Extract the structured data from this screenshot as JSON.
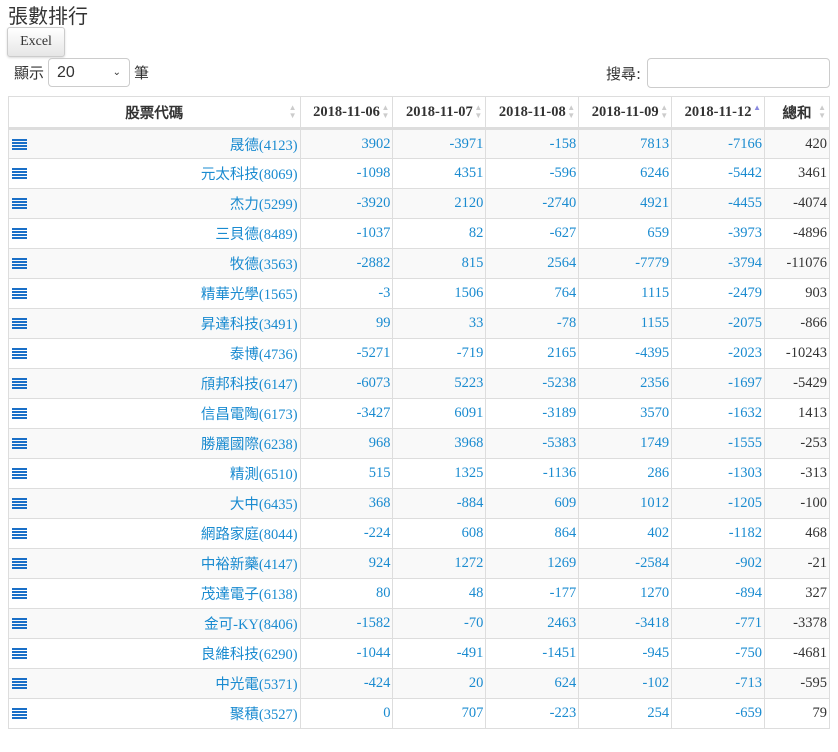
{
  "title": "張數排行",
  "excel_label": "Excel",
  "length": {
    "prefix": "顯示",
    "value": "20",
    "suffix": "筆"
  },
  "search": {
    "label": "搜尋:",
    "value": ""
  },
  "columns": [
    "股票代碼",
    "2018-11-06",
    "2018-11-07",
    "2018-11-08",
    "2018-11-09",
    "2018-11-12",
    "總和"
  ],
  "sorted_column": "2018-11-12",
  "rows": [
    [
      "晟德(4123)",
      "3902",
      "-3971",
      "-158",
      "7813",
      "-7166",
      "420"
    ],
    [
      "元太科技(8069)",
      "-1098",
      "4351",
      "-596",
      "6246",
      "-5442",
      "3461"
    ],
    [
      "杰力(5299)",
      "-3920",
      "2120",
      "-2740",
      "4921",
      "-4455",
      "-4074"
    ],
    [
      "三貝德(8489)",
      "-1037",
      "82",
      "-627",
      "659",
      "-3973",
      "-4896"
    ],
    [
      "牧德(3563)",
      "-2882",
      "815",
      "2564",
      "-7779",
      "-3794",
      "-11076"
    ],
    [
      "精華光學(1565)",
      "-3",
      "1506",
      "764",
      "1115",
      "-2479",
      "903"
    ],
    [
      "昇達科技(3491)",
      "99",
      "33",
      "-78",
      "1155",
      "-2075",
      "-866"
    ],
    [
      "泰博(4736)",
      "-5271",
      "-719",
      "2165",
      "-4395",
      "-2023",
      "-10243"
    ],
    [
      "頎邦科技(6147)",
      "-6073",
      "5223",
      "-5238",
      "2356",
      "-1697",
      "-5429"
    ],
    [
      "信昌電陶(6173)",
      "-3427",
      "6091",
      "-3189",
      "3570",
      "-1632",
      "1413"
    ],
    [
      "勝麗國際(6238)",
      "968",
      "3968",
      "-5383",
      "1749",
      "-1555",
      "-253"
    ],
    [
      "精測(6510)",
      "515",
      "1325",
      "-1136",
      "286",
      "-1303",
      "-313"
    ],
    [
      "大中(6435)",
      "368",
      "-884",
      "609",
      "1012",
      "-1205",
      "-100"
    ],
    [
      "網路家庭(8044)",
      "-224",
      "608",
      "864",
      "402",
      "-1182",
      "468"
    ],
    [
      "中裕新藥(4147)",
      "924",
      "1272",
      "1269",
      "-2584",
      "-902",
      "-21"
    ],
    [
      "茂達電子(6138)",
      "80",
      "48",
      "-177",
      "1270",
      "-894",
      "327"
    ],
    [
      "金可-KY(8406)",
      "-1582",
      "-70",
      "2463",
      "-3418",
      "-771",
      "-3378"
    ],
    [
      "良維科技(6290)",
      "-1044",
      "-491",
      "-1451",
      "-945",
      "-750",
      "-4681"
    ],
    [
      "中光電(5371)",
      "-424",
      "20",
      "624",
      "-102",
      "-713",
      "-595"
    ],
    [
      "聚積(3527)",
      "0",
      "707",
      "-223",
      "254",
      "-659",
      "79"
    ]
  ]
}
